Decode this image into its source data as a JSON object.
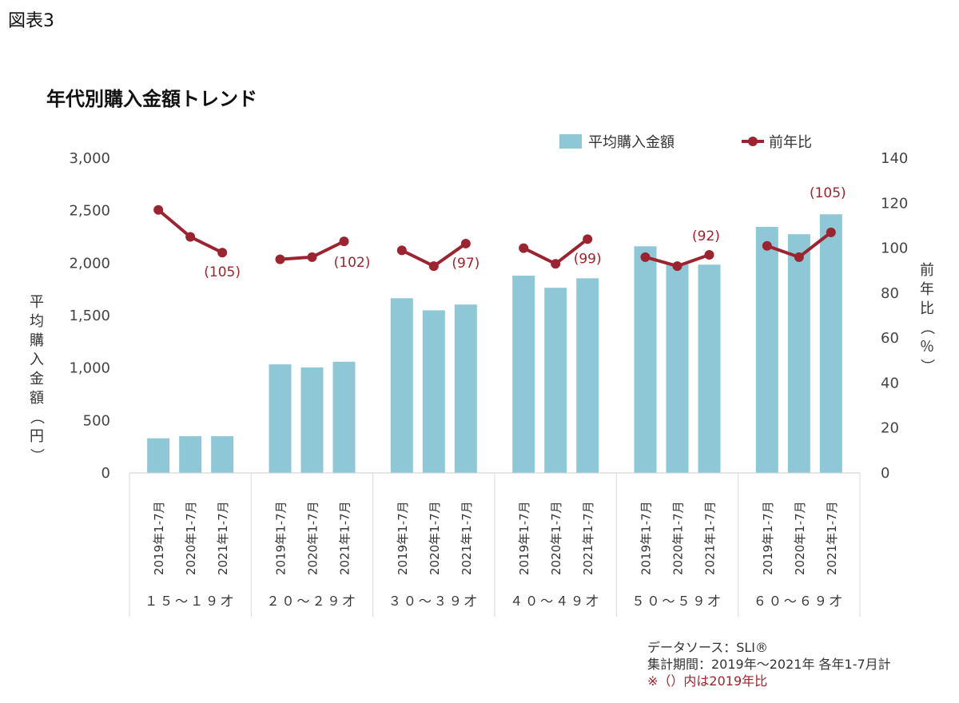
{
  "figure_label": "図表3",
  "chart_data": {
    "type": "bar",
    "title": "年代別購入金額トレンド",
    "groups": [
      "１５～１９才",
      "２０～２９才",
      "３０～３９才",
      "４０～４９才",
      "５０～５９才",
      "６０～６９才"
    ],
    "categories": [
      "2019年1-7月",
      "2020年1-7月",
      "2021年1-7月"
    ],
    "ylabel": "平均購入金額（円）",
    "y2label": "前年比（％）",
    "ylim": [
      0,
      3000
    ],
    "y2lim": [
      0,
      140
    ],
    "yticks": [
      "0",
      "500",
      "1,000",
      "1,500",
      "2,000",
      "2,500",
      "3,000"
    ],
    "y2ticks": [
      "0",
      "20",
      "40",
      "60",
      "80",
      "100",
      "120",
      "140"
    ],
    "legend_position": "top-right",
    "series": [
      {
        "name": "平均購入金額",
        "kind": "bar",
        "color": "#8ec8d6",
        "values": [
          [
            330,
            350,
            350
          ],
          [
            1035,
            1005,
            1060
          ],
          [
            1665,
            1550,
            1605
          ],
          [
            1880,
            1765,
            1855
          ],
          [
            2160,
            1995,
            1985
          ],
          [
            2345,
            2275,
            2465
          ]
        ]
      },
      {
        "name": "前年比",
        "kind": "line",
        "axis": "right",
        "color": "#9b2430",
        "values": [
          [
            117,
            105,
            98
          ],
          [
            95,
            96,
            103
          ],
          [
            99,
            92,
            102
          ],
          [
            100,
            93,
            104
          ],
          [
            96,
            92,
            97
          ],
          [
            101,
            96,
            107
          ]
        ]
      }
    ],
    "annotations": [
      "(105)",
      "(102)",
      "(97)",
      "(99)",
      "(92)",
      "(105)"
    ],
    "annotation_anchor": [
      [
        0,
        2
      ],
      [
        1,
        2
      ],
      [
        2,
        2
      ],
      [
        3,
        2
      ],
      [
        4,
        2
      ],
      [
        5,
        2
      ]
    ]
  },
  "footnotes": [
    "データソース：SLI®",
    "集計期間：2019年～2021年 各年1-7月計",
    "※（）内は2019年比"
  ]
}
